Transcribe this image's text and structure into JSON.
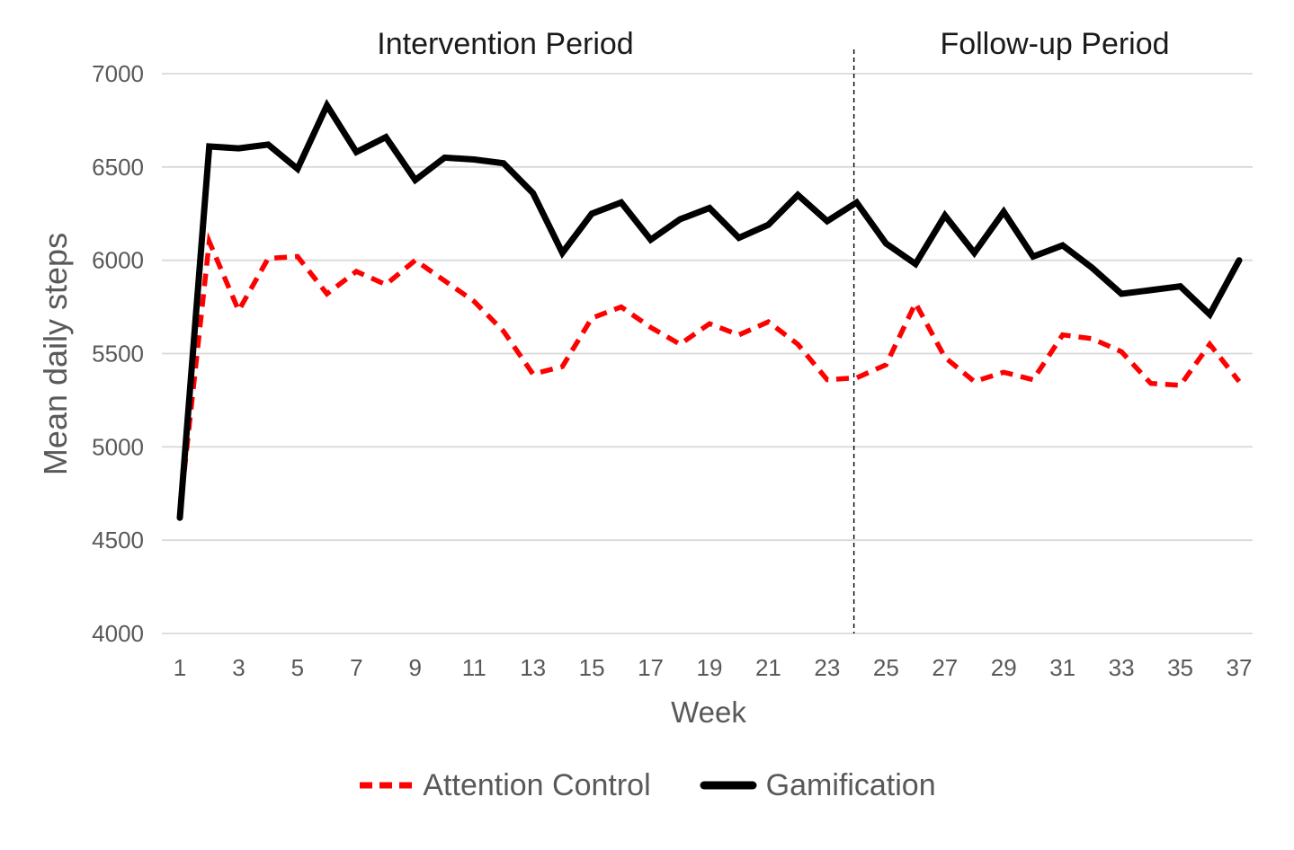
{
  "figure": {
    "background": "#ffffff",
    "grid_color": "#d9d9d9",
    "tick_color": "#595959",
    "annotation_color": "#1a1a1a"
  },
  "legend": [
    {
      "label": "Attention Control",
      "color": "#ff0000",
      "style": "dashed"
    },
    {
      "label": "Gamification",
      "color": "#000000",
      "style": "solid"
    }
  ],
  "chart_data": {
    "type": "line",
    "title": "",
    "xlabel": "Week",
    "ylabel": "Mean daily steps",
    "ylim": [
      4000,
      7000
    ],
    "yticks": [
      4000,
      4500,
      5000,
      5500,
      6000,
      6500,
      7000
    ],
    "xticks": [
      1,
      3,
      5,
      7,
      9,
      11,
      13,
      15,
      17,
      19,
      21,
      23,
      25,
      27,
      29,
      31,
      33,
      35,
      37
    ],
    "x": [
      1,
      2,
      3,
      4,
      5,
      6,
      7,
      8,
      9,
      10,
      11,
      12,
      13,
      14,
      15,
      16,
      17,
      18,
      19,
      20,
      21,
      22,
      23,
      24,
      25,
      26,
      27,
      28,
      29,
      30,
      31,
      32,
      33,
      34,
      35,
      36,
      37
    ],
    "separator_week": 24,
    "grid": true,
    "legend_position": "bottom",
    "annotations": [
      {
        "text": "Intervention Period",
        "region": "weeks 1-24"
      },
      {
        "text": "Follow-up Period",
        "region": "weeks 24-37"
      }
    ],
    "series": [
      {
        "name": "Attention Control",
        "color": "#ff0000",
        "dash": true,
        "values": [
          4650,
          6100,
          5730,
          6010,
          6020,
          5820,
          5940,
          5870,
          6000,
          5890,
          5780,
          5620,
          5390,
          5430,
          5690,
          5750,
          5640,
          5550,
          5660,
          5600,
          5670,
          5550,
          5360,
          5370,
          5440,
          5770,
          5480,
          5350,
          5400,
          5360,
          5600,
          5580,
          5510,
          5340,
          5330,
          5550,
          5350
        ]
      },
      {
        "name": "Gamification",
        "color": "#000000",
        "dash": false,
        "values": [
          4620,
          6610,
          6600,
          6620,
          6490,
          6830,
          6580,
          6660,
          6430,
          6550,
          6540,
          6520,
          6360,
          6040,
          6250,
          6310,
          6110,
          6220,
          6280,
          6120,
          6190,
          6350,
          6210,
          6310,
          6090,
          5980,
          6240,
          6040,
          6260,
          6020,
          6080,
          5960,
          5820,
          5840,
          5860,
          5710,
          6000
        ]
      }
    ]
  }
}
